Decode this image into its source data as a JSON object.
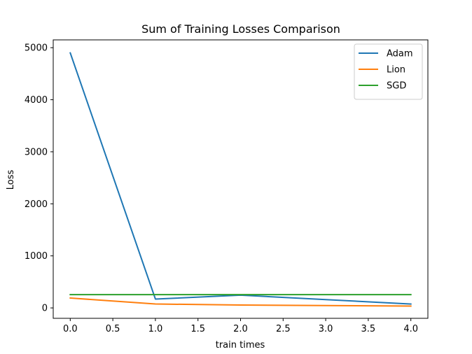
{
  "chart_data": {
    "type": "line",
    "title": "Sum of Training Losses Comparison",
    "xlabel": "train times",
    "ylabel": "Loss",
    "xlim": [
      -0.2,
      4.2
    ],
    "ylim": [
      -200,
      5150
    ],
    "xticks": [
      0.0,
      0.5,
      1.0,
      1.5,
      2.0,
      2.5,
      3.0,
      3.5,
      4.0
    ],
    "xtick_labels": [
      "0.0",
      "0.5",
      "1.0",
      "1.5",
      "2.0",
      "2.5",
      "3.0",
      "3.5",
      "4.0"
    ],
    "yticks": [
      0,
      1000,
      2000,
      3000,
      4000,
      5000
    ],
    "ytick_labels": [
      "0",
      "1000",
      "2000",
      "3000",
      "4000",
      "5000"
    ],
    "grid": false,
    "legend_position": "top-right",
    "x": [
      0,
      1,
      2,
      3,
      4
    ],
    "series": [
      {
        "name": "Adam",
        "color": "#1f77b4",
        "values": [
          4900,
          170,
          245,
          160,
          75
        ]
      },
      {
        "name": "Lion",
        "color": "#ff7f0e",
        "values": [
          190,
          75,
          55,
          45,
          35
        ]
      },
      {
        "name": "SGD",
        "color": "#2ca02c",
        "values": [
          255,
          255,
          255,
          255,
          255
        ]
      }
    ]
  }
}
